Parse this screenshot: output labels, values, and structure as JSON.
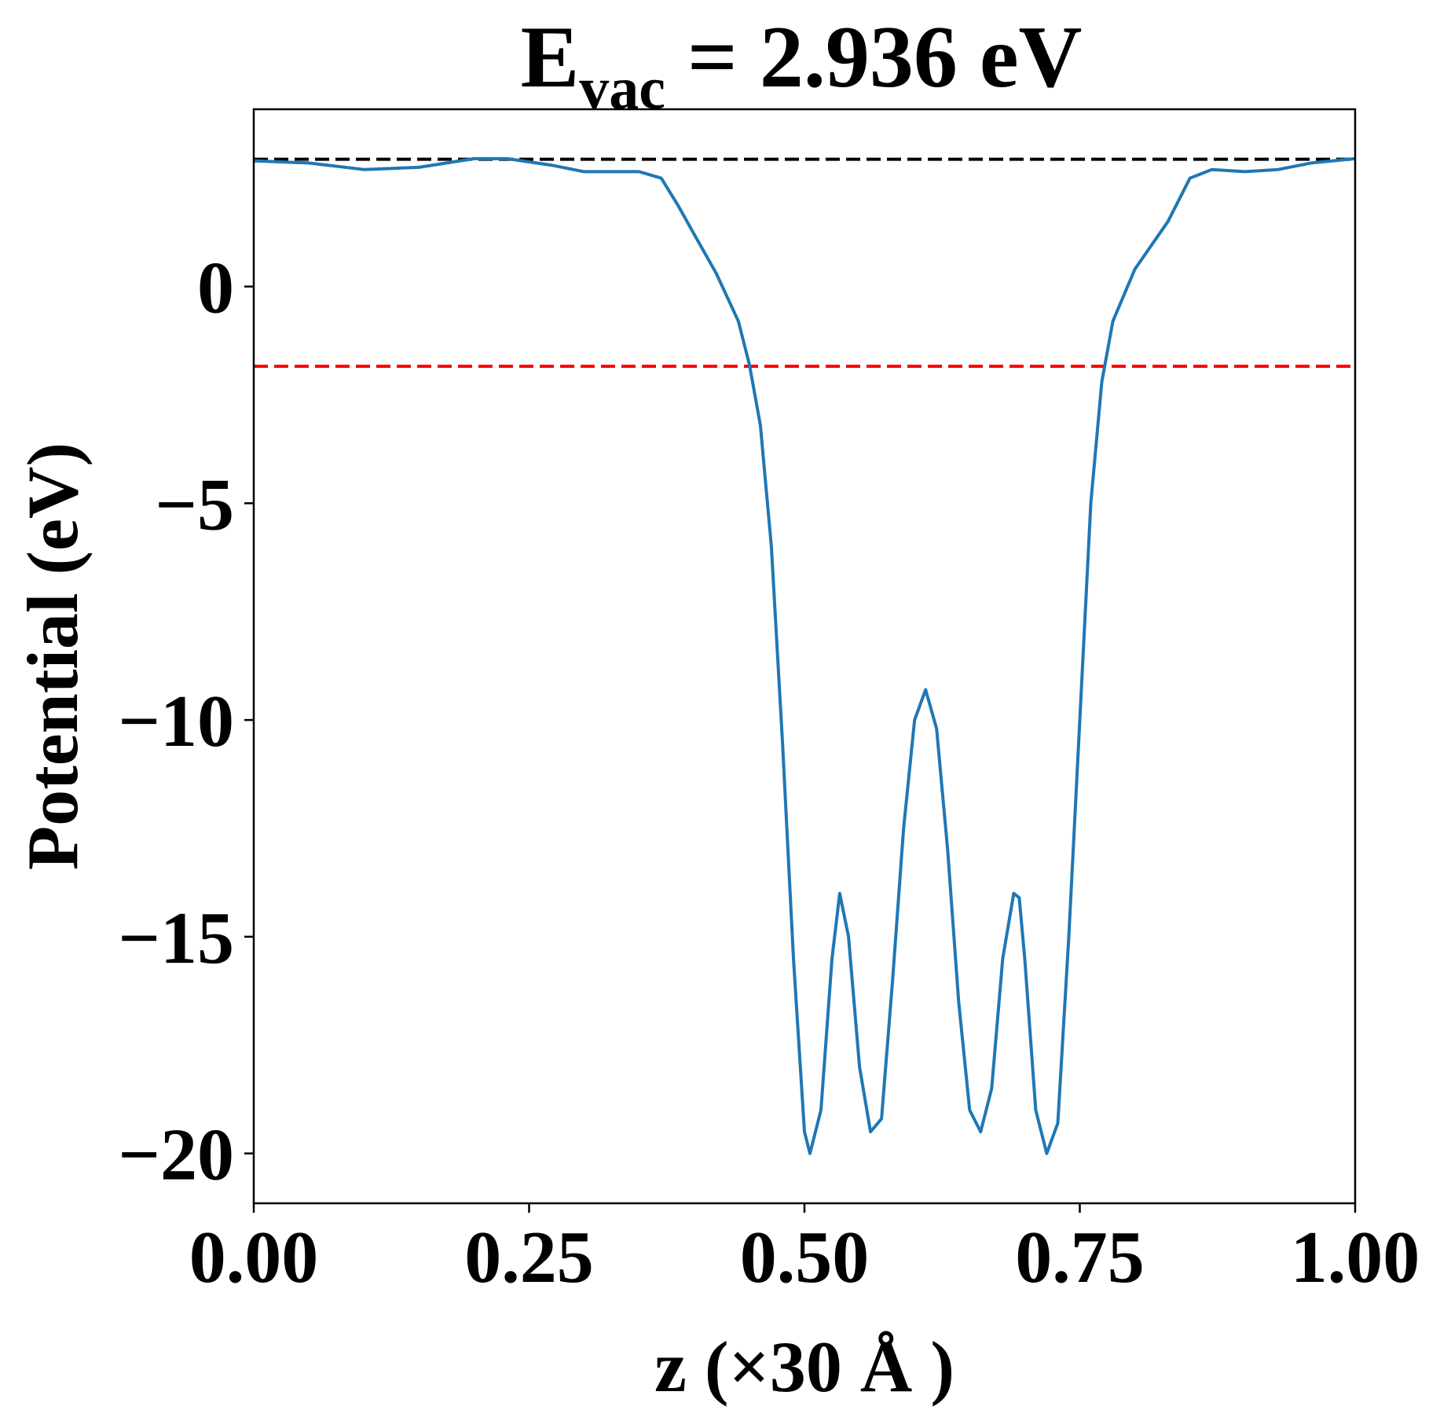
{
  "chart_data": {
    "type": "line",
    "title_parts": [
      "E",
      "vac",
      " = 2.936 eV"
    ],
    "x_label": "z (×30 Å )",
    "y_label": "Potential (eV)",
    "xlim": [
      0,
      1
    ],
    "ylim": [
      -21.15,
      4.09
    ],
    "xticks": [
      {
        "value": 0,
        "label": "0.00"
      },
      {
        "value": 0.25,
        "label": "0.25"
      },
      {
        "value": 0.5,
        "label": "0.50"
      },
      {
        "value": 0.75,
        "label": "0.75"
      },
      {
        "value": 1,
        "label": "1.00"
      }
    ],
    "yticks": [
      {
        "value": -20,
        "label": "−20"
      },
      {
        "value": -15,
        "label": "−15"
      },
      {
        "value": -10,
        "label": "−10"
      },
      {
        "value": -5,
        "label": "−5"
      },
      {
        "value": 0,
        "label": "0"
      }
    ],
    "hlines": [
      {
        "value": 2.936,
        "color": "#000000"
      },
      {
        "value": -1.84,
        "color": "#ff0000"
      }
    ],
    "series": [
      {
        "name": "potential",
        "color": "#1f77b4",
        "x": [
          0,
          0.05,
          0.1,
          0.15,
          0.2,
          0.23,
          0.27,
          0.3,
          0.35,
          0.37,
          0.385,
          0.4,
          0.42,
          0.44,
          0.45,
          0.46,
          0.47,
          0.48,
          0.49,
          0.5,
          0.505,
          0.515,
          0.525,
          0.532,
          0.54,
          0.55,
          0.56,
          0.57,
          0.58,
          0.59,
          0.6,
          0.61,
          0.62,
          0.63,
          0.64,
          0.65,
          0.66,
          0.67,
          0.68,
          0.69,
          0.695,
          0.7,
          0.71,
          0.72,
          0.73,
          0.74,
          0.75,
          0.76,
          0.77,
          0.78,
          0.8,
          0.83,
          0.84,
          0.85,
          0.87,
          0.9,
          0.93,
          0.96,
          1
        ],
        "values": [
          2.9,
          2.85,
          2.7,
          2.75,
          2.95,
          2.95,
          2.8,
          2.65,
          2.65,
          2.5,
          1.88,
          1.2,
          0.3,
          -0.8,
          -1.8,
          -3.2,
          -6,
          -10.5,
          -15.5,
          -19.5,
          -20,
          -19,
          -15.5,
          -14,
          -15,
          -18,
          -19.5,
          -19.2,
          -16,
          -12.5,
          -10,
          -9.3,
          -10.2,
          -13,
          -16.5,
          -19,
          -19.5,
          -18.5,
          -15.5,
          -14,
          -14.1,
          -15.5,
          -19,
          -20,
          -19.3,
          -15,
          -10,
          -5,
          -2.2,
          -0.8,
          0.4,
          1.5,
          2,
          2.5,
          2.7,
          2.65,
          2.7,
          2.85,
          2.95
        ]
      }
    ]
  }
}
